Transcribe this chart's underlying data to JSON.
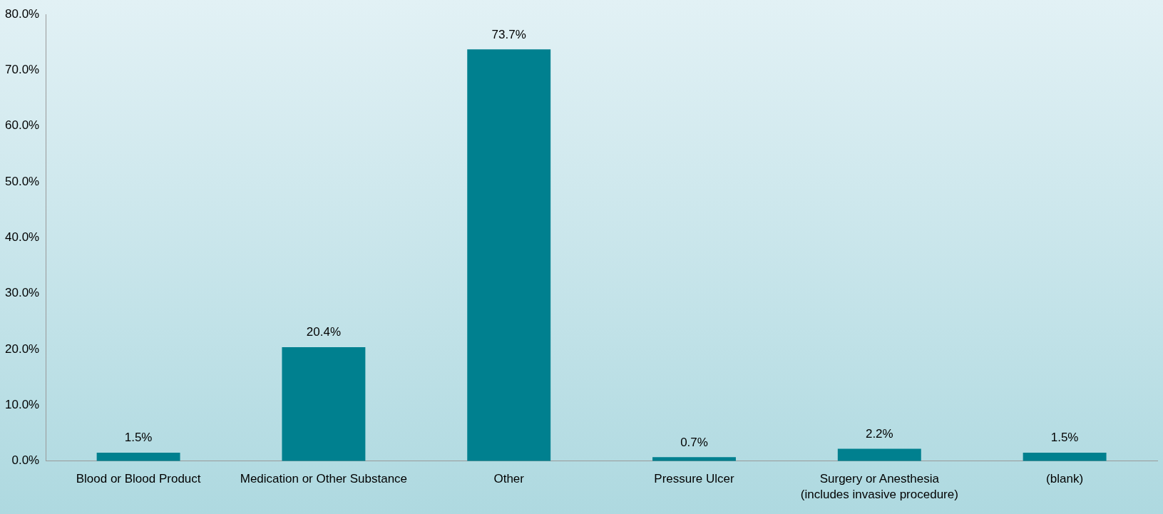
{
  "chart_data": {
    "type": "bar",
    "categories": [
      "Blood or Blood Product",
      "Medication or Other Substance",
      "Other",
      "Pressure Ulcer",
      "Surgery or Anesthesia (includes invasive procedure)",
      "(blank)"
    ],
    "values": [
      1.5,
      20.4,
      73.7,
      0.7,
      2.2,
      1.5
    ],
    "value_labels": [
      "1.5%",
      "20.4%",
      "73.7%",
      "0.7%",
      "2.2%",
      "1.5%"
    ],
    "color": "#00808f",
    "ylim": [
      0,
      80
    ],
    "yticks": [
      {
        "value": 0,
        "label": "0.0%"
      },
      {
        "value": 10,
        "label": "10.0%"
      },
      {
        "value": 20,
        "label": "20.0%"
      },
      {
        "value": 30,
        "label": "30.0%"
      },
      {
        "value": 40,
        "label": "40.0%"
      },
      {
        "value": 50,
        "label": "50.0%"
      },
      {
        "value": 60,
        "label": "60.0%"
      },
      {
        "value": 70,
        "label": "70.0%"
      },
      {
        "value": 80,
        "label": "80.0%"
      }
    ],
    "grid": false,
    "legend": false
  }
}
